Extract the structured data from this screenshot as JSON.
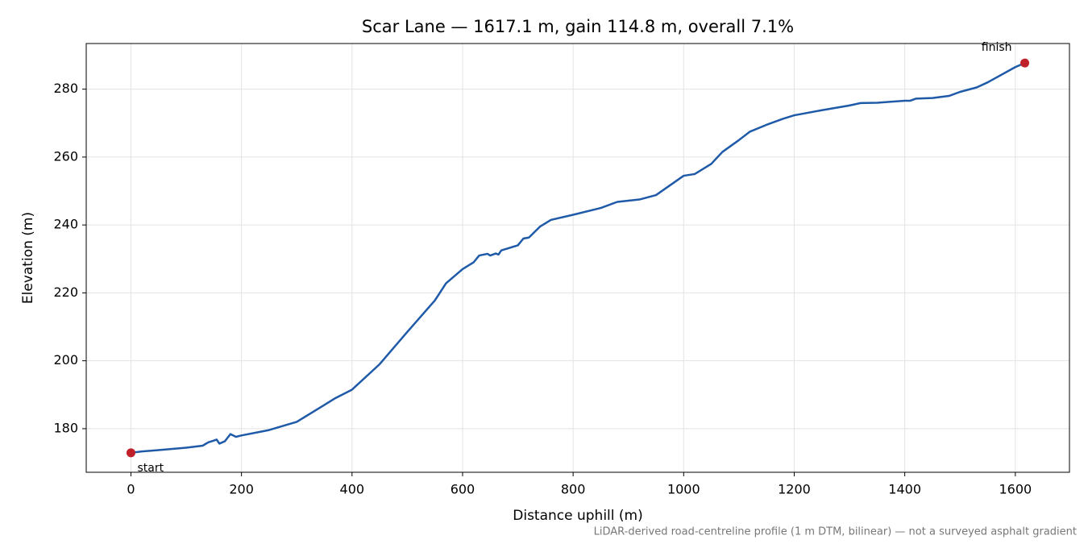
{
  "chart_data": {
    "type": "line",
    "title": "Scar Lane — 1617.1 m, gain 114.8 m, overall 7.1%",
    "x_label": "Distance uphill (m)",
    "y_label": "Elevation (m)",
    "footnote": "LiDAR-derived road-centreline profile (1 m DTM, bilinear) — not a surveyed asphalt gradient",
    "x": [
      0,
      20,
      50,
      100,
      130,
      140,
      150,
      155,
      160,
      170,
      180,
      190,
      200,
      250,
      300,
      350,
      370,
      400,
      450,
      500,
      550,
      570,
      600,
      620,
      630,
      645,
      650,
      660,
      665,
      670,
      700,
      710,
      720,
      740,
      760,
      800,
      850,
      880,
      920,
      950,
      1000,
      1020,
      1050,
      1070,
      1100,
      1120,
      1150,
      1180,
      1200,
      1250,
      1300,
      1320,
      1350,
      1400,
      1410,
      1420,
      1450,
      1480,
      1500,
      1530,
      1550,
      1600,
      1617.1
    ],
    "series": [
      {
        "name": "Elevation",
        "color": "#1f5aa8",
        "values": [
          172.9,
          173.3,
          173.7,
          174.4,
          175.0,
          176.0,
          176.5,
          176.8,
          175.6,
          176.3,
          178.4,
          177.6,
          178.0,
          179.6,
          182.0,
          187.0,
          189.0,
          191.5,
          199.0,
          208.5,
          217.8,
          222.8,
          227.0,
          229.0,
          231.0,
          231.5,
          231.0,
          231.6,
          231.3,
          232.5,
          234.0,
          236.0,
          236.3,
          239.5,
          241.5,
          243.0,
          245.0,
          246.8,
          247.5,
          248.8,
          254.5,
          255.0,
          258.0,
          261.5,
          265.0,
          267.5,
          269.5,
          271.3,
          272.3,
          273.8,
          275.2,
          275.9,
          276.0,
          276.6,
          276.6,
          277.2,
          277.4,
          278.0,
          279.2,
          280.5,
          282.0,
          286.5,
          287.7
        ]
      }
    ],
    "points": [
      {
        "label": "start",
        "x": 0,
        "y": 172.9,
        "color": "#c0202a"
      },
      {
        "label": "finish",
        "x": 1617.1,
        "y": 287.7,
        "color": "#c0202a"
      }
    ],
    "xlim": [
      -80.855,
      1697.955
    ],
    "ylim": [
      167.16,
      293.44
    ],
    "xticks": [
      0,
      200,
      400,
      600,
      800,
      1000,
      1200,
      1400,
      1600
    ],
    "yticks": [
      180,
      200,
      220,
      240,
      260,
      280
    ],
    "grid": true
  }
}
